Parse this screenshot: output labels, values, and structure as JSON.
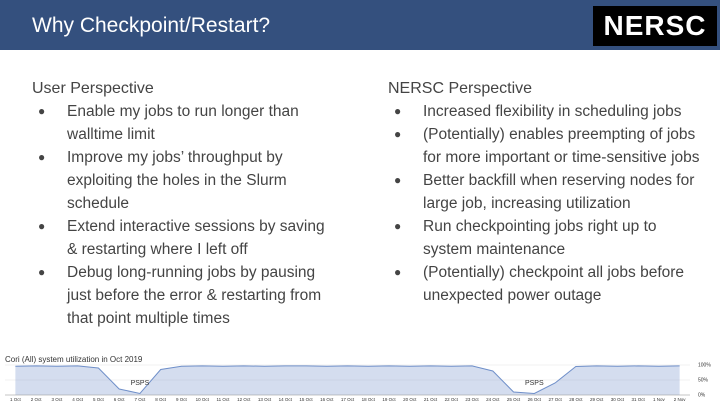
{
  "header": {
    "title": "Why Checkpoint/Restart?",
    "logo": "NERSC"
  },
  "left": {
    "heading": "User Perspective",
    "items": [
      "Enable my jobs to run longer than walltime limit",
      "Improve my jobs’ throughput by exploiting the holes in the Slurm schedule",
      "Extend interactive sessions by saving & restarting where I left off",
      "Debug long-running jobs by pausing just before the error & restarting from that point multiple times"
    ]
  },
  "right": {
    "heading": "NERSC Perspective",
    "items": [
      "Increased flexibility in scheduling jobs",
      "(Potentially) enables preempting of jobs for more important or time-sensitive jobs",
      "Better backfill when reserving nodes for large job, increasing utilization",
      "Run checkpointing jobs right up to system maintenance",
      "(Potentially) checkpoint all jobs before unexpected power outage"
    ]
  },
  "bullet": "●",
  "chart_data": {
    "type": "area",
    "title": "Cori (All) system utilization in Oct 2019",
    "categories": [
      "1 Oct",
      "2 Oct",
      "3 Oct",
      "4 Oct",
      "5 Oct",
      "6 Oct",
      "7 Oct",
      "8 Oct",
      "9 Oct",
      "10 Oct",
      "11 Oct",
      "12 Oct",
      "13 Oct",
      "14 Oct",
      "15 Oct",
      "16 Oct",
      "17 Oct",
      "18 Oct",
      "19 Oct",
      "20 Oct",
      "21 Oct",
      "22 Oct",
      "23 Oct",
      "24 Oct",
      "25 Oct",
      "26 Oct",
      "27 Oct",
      "28 Oct",
      "29 Oct",
      "30 Oct",
      "31 Oct",
      "1 Nov",
      "2 Nov"
    ],
    "values": [
      96,
      97,
      96,
      97,
      90,
      20,
      5,
      85,
      96,
      97,
      96,
      97,
      96,
      97,
      97,
      96,
      97,
      96,
      97,
      96,
      97,
      96,
      97,
      80,
      10,
      5,
      40,
      95,
      97,
      96,
      97,
      96,
      97
    ],
    "color": "#6f8fc9",
    "ylim": [
      0,
      100
    ],
    "yticks": [
      {
        "value": 0,
        "label": "0%"
      },
      {
        "value": 50,
        "label": "50%"
      },
      {
        "value": 100,
        "label": "100%"
      }
    ],
    "annotations": [
      {
        "text": "PSPS",
        "at": 6
      },
      {
        "text": "PSPS",
        "at": 25
      }
    ]
  }
}
